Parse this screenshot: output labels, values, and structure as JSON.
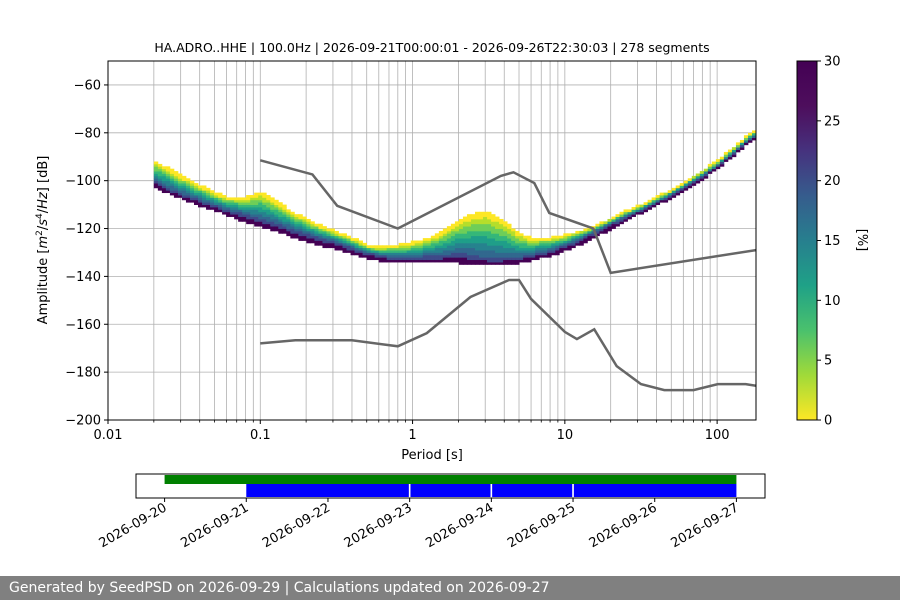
{
  "chart_data": [
    {
      "type": "heatmap",
      "title": "HA.ADRO..HHE | 100.0Hz | 2026-09-21T00:00:01 - 2026-09-26T22:30:03 | 278 segments",
      "xlabel": "Period [s]",
      "ylabel_parts": [
        "Amplitude [",
        "m",
        "2",
        "/",
        "s",
        "4",
        "/",
        "Hz",
        "] [dB]"
      ],
      "x_scale": "log",
      "xlim": [
        0.01,
        180
      ],
      "ylim": [
        -200,
        -50
      ],
      "x_ticks": [
        0.01,
        0.1,
        1,
        10,
        100
      ],
      "x_tick_labels": [
        "0.01",
        "0.1",
        "1",
        "10",
        "100"
      ],
      "y_ticks": [
        -200,
        -180,
        -160,
        -140,
        -120,
        -100,
        -80,
        -60
      ],
      "y_tick_labels": [
        "−200",
        "−180",
        "−160",
        "−140",
        "−120",
        "−100",
        "−80",
        "−60"
      ],
      "grid": true,
      "colormap": "viridis_r",
      "colorbar": {
        "label": "[%]",
        "range": [
          0,
          30
        ],
        "ticks": [
          0,
          5,
          10,
          15,
          20,
          25,
          30
        ],
        "tick_labels": [
          "0",
          "5",
          "10",
          "15",
          "20",
          "25",
          "30"
        ]
      },
      "psd_columns": [
        {
          "period": 0.02,
          "low": -102,
          "mode": -100,
          "high": -92
        },
        {
          "period": 0.025,
          "low": -105,
          "mode": -103,
          "high": -95
        },
        {
          "period": 0.03,
          "low": -107,
          "mode": -105,
          "high": -98
        },
        {
          "period": 0.04,
          "low": -110,
          "mode": -108,
          "high": -102
        },
        {
          "period": 0.05,
          "low": -112,
          "mode": -110,
          "high": -105
        },
        {
          "period": 0.06,
          "low": -114,
          "mode": -112,
          "high": -107
        },
        {
          "period": 0.08,
          "low": -117,
          "mode": -114,
          "high": -107
        },
        {
          "period": 0.1,
          "low": -119,
          "mode": -116,
          "high": -105
        },
        {
          "period": 0.13,
          "low": -121,
          "mode": -118,
          "high": -109
        },
        {
          "period": 0.16,
          "low": -123,
          "mode": -120,
          "high": -113
        },
        {
          "period": 0.2,
          "low": -125,
          "mode": -122,
          "high": -116
        },
        {
          "period": 0.25,
          "low": -127,
          "mode": -124,
          "high": -119
        },
        {
          "period": 0.3,
          "low": -128,
          "mode": -125,
          "high": -121
        },
        {
          "period": 0.4,
          "low": -130,
          "mode": -128,
          "high": -124
        },
        {
          "period": 0.5,
          "low": -132,
          "mode": -130,
          "high": -127
        },
        {
          "period": 0.6,
          "low": -133,
          "mode": -131,
          "high": -128
        },
        {
          "period": 0.8,
          "low": -134,
          "mode": -132,
          "high": -127
        },
        {
          "period": 1.0,
          "low": -134,
          "mode": -132,
          "high": -126
        },
        {
          "period": 1.3,
          "low": -134,
          "mode": -131,
          "high": -124
        },
        {
          "period": 1.6,
          "low": -134,
          "mode": -131,
          "high": -121
        },
        {
          "period": 2.0,
          "low": -134,
          "mode": -130,
          "high": -117
        },
        {
          "period": 2.5,
          "low": -135,
          "mode": -131,
          "high": -114
        },
        {
          "period": 3.0,
          "low": -135,
          "mode": -132,
          "high": -113
        },
        {
          "period": 4.0,
          "low": -135,
          "mode": -132,
          "high": -117
        },
        {
          "period": 5.0,
          "low": -134,
          "mode": -132,
          "high": -122
        },
        {
          "period": 6.0,
          "low": -133,
          "mode": -131,
          "high": -124
        },
        {
          "period": 8.0,
          "low": -131,
          "mode": -129,
          "high": -124
        },
        {
          "period": 10,
          "low": -129,
          "mode": -127,
          "high": -123
        },
        {
          "period": 13,
          "low": -126,
          "mode": -124,
          "high": -121
        },
        {
          "period": 16,
          "low": -123,
          "mode": -121,
          "high": -119
        },
        {
          "period": 20,
          "low": -120,
          "mode": -118,
          "high": -116
        },
        {
          "period": 25,
          "low": -117,
          "mode": -115,
          "high": -113
        },
        {
          "period": 30,
          "low": -114,
          "mode": -113,
          "high": -111
        },
        {
          "period": 40,
          "low": -110,
          "mode": -109,
          "high": -107
        },
        {
          "period": 50,
          "low": -107,
          "mode": -106,
          "high": -104
        },
        {
          "period": 60,
          "low": -104,
          "mode": -103,
          "high": -101
        },
        {
          "period": 80,
          "low": -99,
          "mode": -98,
          "high": -96
        },
        {
          "period": 100,
          "low": -95,
          "mode": -94,
          "high": -92
        },
        {
          "period": 130,
          "low": -89,
          "mode": -88,
          "high": -86
        },
        {
          "period": 160,
          "low": -84,
          "mode": -83,
          "high": -81
        },
        {
          "period": 180,
          "low": -82,
          "mode": -81,
          "high": -79
        }
      ],
      "series": [
        {
          "color": "#666666",
          "points": [
            [
              0.1,
              -91.5
            ],
            [
              0.22,
              -97.4
            ],
            [
              0.32,
              -110.5
            ],
            [
              0.8,
              -120.0
            ],
            [
              3.8,
              -98.0
            ],
            [
              4.6,
              -96.5
            ],
            [
              6.3,
              -101.0
            ],
            [
              7.9,
              -113.5
            ],
            [
              15.4,
              -120.0
            ],
            [
              20.0,
              -138.5
            ],
            [
              180,
              -129.0
            ]
          ]
        },
        {
          "color": "#666666",
          "points": [
            [
              0.1,
              -168.0
            ],
            [
              0.17,
              -166.7
            ],
            [
              0.4,
              -166.7
            ],
            [
              0.8,
              -169.2
            ],
            [
              1.24,
              -163.7
            ],
            [
              2.4,
              -148.6
            ],
            [
              4.3,
              -141.5
            ],
            [
              5.0,
              -141.5
            ],
            [
              6.0,
              -149.4
            ],
            [
              10.0,
              -163.2
            ],
            [
              12.0,
              -166.2
            ],
            [
              15.6,
              -162.1
            ],
            [
              21.9,
              -177.5
            ],
            [
              31.6,
              -185.0
            ],
            [
              45.0,
              -187.5
            ],
            [
              70.0,
              -187.5
            ],
            [
              101.0,
              -185.0
            ],
            [
              154.0,
              -185.0
            ],
            [
              180,
              -185.7
            ]
          ]
        }
      ]
    },
    {
      "type": "timeline",
      "x_ticks": [
        "2026-09-20",
        "2026-09-21",
        "2026-09-22",
        "2026-09-23",
        "2026-09-24",
        "2026-09-25",
        "2026-09-26",
        "2026-09-27"
      ],
      "x_range_days": [
        -0.35,
        7.35
      ],
      "bars": [
        {
          "color": "#008000",
          "start_day": 0.0,
          "end_day": 7.0,
          "row": "top"
        },
        {
          "color": "#0000ff",
          "start_day": 1.0,
          "end_day": 2.99,
          "row": "bottom"
        },
        {
          "color": "#0000ff",
          "start_day": 3.01,
          "end_day": 3.99,
          "row": "bottom"
        },
        {
          "color": "#0000ff",
          "start_day": 4.01,
          "end_day": 4.99,
          "row": "bottom"
        },
        {
          "color": "#0000ff",
          "start_day": 5.01,
          "end_day": 7.0,
          "row": "bottom"
        }
      ]
    }
  ],
  "footer": {
    "text": "Generated by SeedPSD on 2026-09-29 | Calculations updated on 2026-09-27"
  }
}
